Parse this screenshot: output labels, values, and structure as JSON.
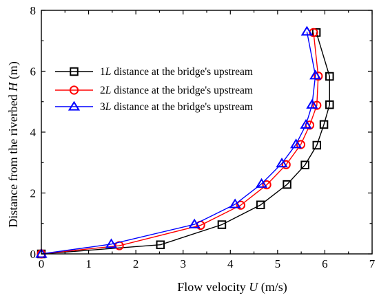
{
  "chart_data": {
    "type": "line",
    "xlabel": "Flow velocity U (m/s)",
    "xlabel_parts": {
      "pre": "Flow velocity ",
      "ital": "U",
      "post": " (m/s)"
    },
    "ylabel": "Distance from the riverbed H (m)",
    "ylabel_parts": {
      "pre": "Distance from the riverbed ",
      "ital": "H",
      "post": " (m)"
    },
    "xlim": [
      0,
      7
    ],
    "ylim": [
      0,
      8
    ],
    "xticks": [
      0,
      1,
      2,
      3,
      4,
      5,
      6,
      7
    ],
    "yticks": [
      0,
      2,
      4,
      6,
      8
    ],
    "grid": false,
    "legend_position": "top-left",
    "series": [
      {
        "name": "1L distance at the bridge's upstream",
        "name_parts": {
          "pre": "1",
          "ital": "L",
          "post": " distance at the bridge's upstream"
        },
        "color": "#000000",
        "marker": "square",
        "x": [
          0.0,
          2.52,
          3.82,
          4.64,
          5.2,
          5.58,
          5.83,
          5.98,
          6.1,
          6.1,
          5.82
        ],
        "y": [
          0.0,
          0.3,
          0.96,
          1.61,
          2.28,
          2.92,
          3.57,
          4.25,
          4.9,
          5.83,
          7.27
        ]
      },
      {
        "name": "2L distance at the bridge's upstream",
        "name_parts": {
          "pre": "2",
          "ital": "L",
          "post": " distance at the bridge's upstream"
        },
        "color": "#ff0000",
        "marker": "circle",
        "x": [
          0.0,
          1.65,
          3.37,
          4.22,
          4.77,
          5.18,
          5.49,
          5.68,
          5.83,
          5.86,
          5.76
        ],
        "y": [
          0.0,
          0.27,
          0.94,
          1.6,
          2.27,
          2.93,
          3.59,
          4.23,
          4.88,
          5.84,
          7.27
        ]
      },
      {
        "name": "3L distance at the bridge's upstream",
        "name_parts": {
          "pre": "3",
          "ital": "L",
          "post": " distance at the bridge's upstream"
        },
        "color": "#0000ff",
        "marker": "triangle",
        "x": [
          0.0,
          1.48,
          3.24,
          4.1,
          4.66,
          5.09,
          5.39,
          5.6,
          5.73,
          5.8,
          5.62
        ],
        "y": [
          0.0,
          0.32,
          0.97,
          1.63,
          2.3,
          2.97,
          3.6,
          4.24,
          4.9,
          5.86,
          7.3
        ]
      }
    ]
  }
}
